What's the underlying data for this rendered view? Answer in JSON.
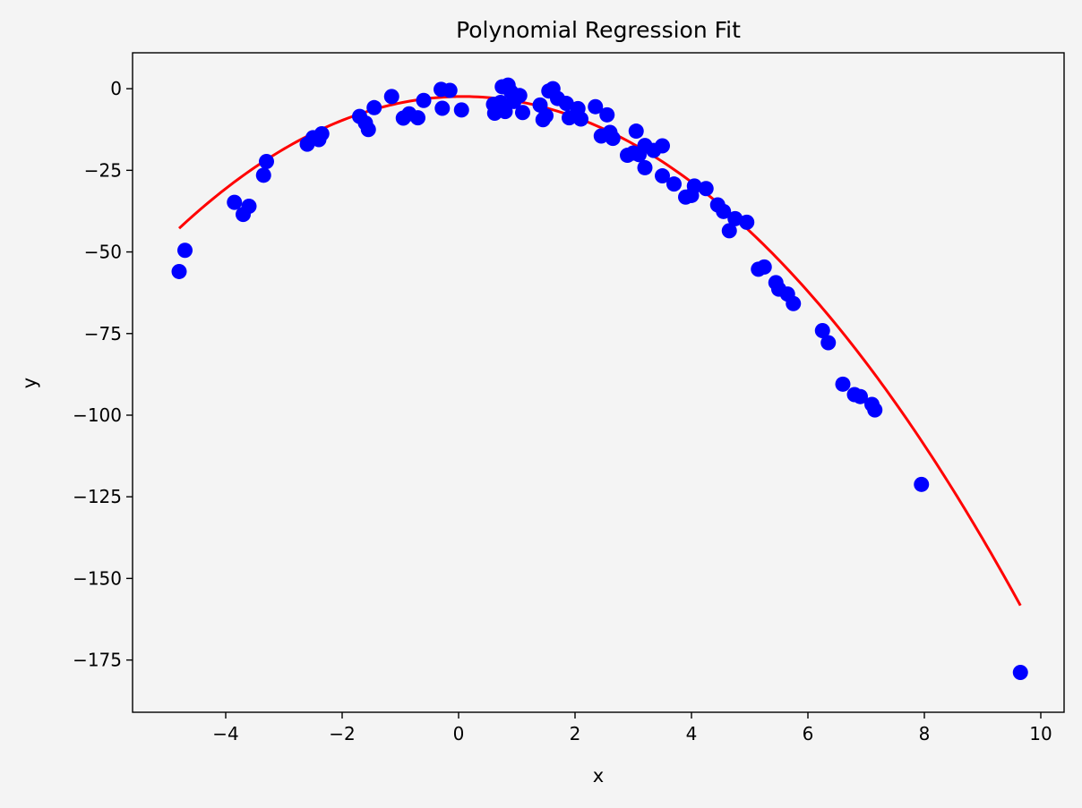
{
  "chart_data": {
    "type": "scatter",
    "title": "Polynomial Regression Fit",
    "xlabel": "x",
    "ylabel": "y",
    "xlim": [
      -5.6,
      10.4
    ],
    "ylim": [
      -191,
      11
    ],
    "xticks": [
      -4,
      -2,
      0,
      2,
      4,
      6,
      8,
      10
    ],
    "yticks": [
      0,
      -25,
      -50,
      -75,
      -100,
      -125,
      -150,
      -175
    ],
    "xtick_labels": [
      "−4",
      "−2",
      "0",
      "2",
      "4",
      "6",
      "8",
      "10"
    ],
    "ytick_labels": [
      "0",
      "−25",
      "−50",
      "−75",
      "−100",
      "−125",
      "−150",
      "−175"
    ],
    "grid": false,
    "series": [
      {
        "kind": "scatter",
        "color": "#0000ff",
        "points": [
          [
            -4.8,
            -56
          ],
          [
            -4.7,
            -49.5
          ],
          [
            -3.85,
            -34.8
          ],
          [
            -3.7,
            -38.5
          ],
          [
            -3.6,
            -36
          ],
          [
            -3.35,
            -26.5
          ],
          [
            -3.3,
            -22.3
          ],
          [
            -2.6,
            -17
          ],
          [
            -2.5,
            -15
          ],
          [
            -2.4,
            -15.6
          ],
          [
            -2.35,
            -13.8
          ],
          [
            -1.7,
            -8.5
          ],
          [
            -1.6,
            -10.5
          ],
          [
            -1.55,
            -12.5
          ],
          [
            -1.45,
            -5.8
          ],
          [
            -1.15,
            -2.4
          ],
          [
            -0.95,
            -9
          ],
          [
            -0.85,
            -7.7
          ],
          [
            -0.7,
            -8.9
          ],
          [
            -0.6,
            -3.6
          ],
          [
            -0.3,
            -0.2
          ],
          [
            -0.28,
            -6
          ],
          [
            -0.15,
            -0.5
          ],
          [
            0.05,
            -6.5
          ],
          [
            0.6,
            -4.8
          ],
          [
            0.62,
            -7.5
          ],
          [
            0.72,
            -4.2
          ],
          [
            0.75,
            0.6
          ],
          [
            0.8,
            -7
          ],
          [
            0.85,
            1.1
          ],
          [
            0.9,
            -1
          ],
          [
            0.95,
            -3.9
          ],
          [
            1.05,
            -2.1
          ],
          [
            1.1,
            -7.3
          ],
          [
            1.4,
            -5
          ],
          [
            1.45,
            -9.5
          ],
          [
            1.5,
            -8.3
          ],
          [
            1.55,
            -0.7
          ],
          [
            1.62,
            0
          ],
          [
            1.7,
            -3
          ],
          [
            1.85,
            -4.5
          ],
          [
            1.9,
            -8.9
          ],
          [
            2.05,
            -6.1
          ],
          [
            2.1,
            -9.3
          ],
          [
            2.35,
            -5.5
          ],
          [
            2.45,
            -14.5
          ],
          [
            2.55,
            -8
          ],
          [
            2.6,
            -13.4
          ],
          [
            2.65,
            -15.2
          ],
          [
            2.9,
            -20.4
          ],
          [
            3,
            -19.7
          ],
          [
            3.05,
            -13
          ],
          [
            3.1,
            -20.2
          ],
          [
            3.2,
            -17.4
          ],
          [
            3.2,
            -24.2
          ],
          [
            3.35,
            -18.9
          ],
          [
            3.5,
            -17.5
          ],
          [
            3.5,
            -26.7
          ],
          [
            3.7,
            -29.2
          ],
          [
            3.9,
            -33.2
          ],
          [
            4,
            -32.7
          ],
          [
            4.05,
            -29.8
          ],
          [
            4.25,
            -30.6
          ],
          [
            4.45,
            -35.6
          ],
          [
            4.55,
            -37.6
          ],
          [
            4.65,
            -43.5
          ],
          [
            4.75,
            -39.8
          ],
          [
            4.95,
            -40.9
          ],
          [
            5.15,
            -55.3
          ],
          [
            5.25,
            -54.6
          ],
          [
            5.45,
            -59.4
          ],
          [
            5.5,
            -61.4
          ],
          [
            5.65,
            -62.9
          ],
          [
            5.75,
            -65.8
          ],
          [
            6.25,
            -74.1
          ],
          [
            6.35,
            -77.8
          ],
          [
            6.6,
            -90.5
          ],
          [
            6.8,
            -93.7
          ],
          [
            6.9,
            -94.3
          ],
          [
            7.1,
            -96.7
          ],
          [
            7.15,
            -98.4
          ],
          [
            7.95,
            -121.2
          ],
          [
            9.65,
            -178.8
          ]
        ]
      },
      {
        "kind": "line",
        "color": "#ff0000",
        "model": "quadratic",
        "coefficients": {
          "a": -1.7,
          "b": 0.25,
          "c": -2.4
        },
        "x_range": [
          -4.8,
          9.65
        ]
      }
    ]
  }
}
